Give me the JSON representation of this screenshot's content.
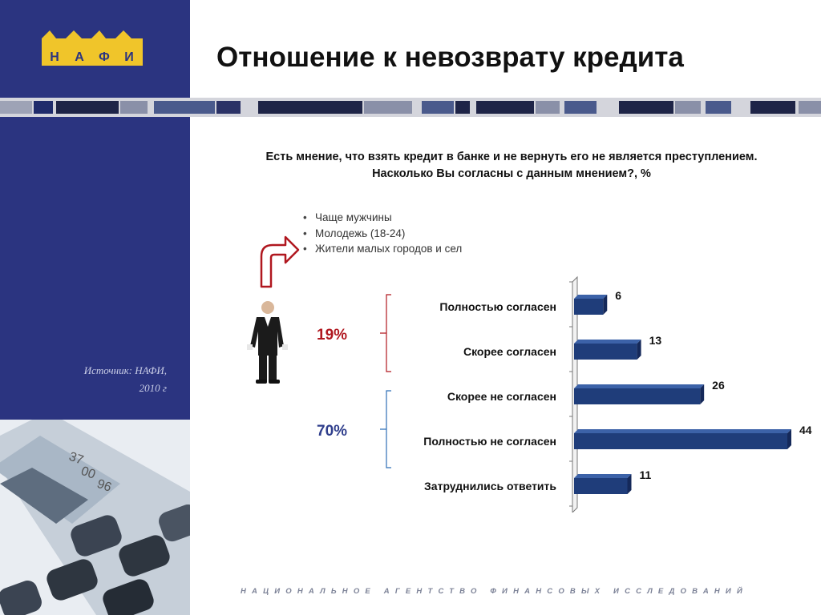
{
  "brand": {
    "logo_text": "НАФИ",
    "logo_letters": [
      "Н",
      "А",
      "Ф",
      "И"
    ]
  },
  "header": {
    "title": "Отношение к невозврату кредита"
  },
  "sidebar": {
    "source_line1": "Источник: НАФИ,",
    "source_line2": "2010 г"
  },
  "question": {
    "line1": "Есть мнение, что взять кредит в банке и не вернуть его не является преступлением.",
    "line2": "Насколько Вы согласны с данным мнением?, %"
  },
  "notes": [
    "Чаще мужчины",
    "Молодежь (18-24)",
    "Жители малых городов и сел"
  ],
  "groups": {
    "agree_pct": "19%",
    "disagree_pct": "70%"
  },
  "footer": {
    "text": "НАЦИОНАЛЬНОЕ АГЕНТСТВО ФИНАНСОВЫХ ИССЛЕДОВАНИЙ"
  },
  "colors": {
    "bar": "#1f3d7a",
    "bar_top": "#3c62a8",
    "sidebar": "#2b3480",
    "agree_bracket": "#b0171f",
    "disagree_bracket": "#2f6fb6"
  },
  "chart_data": {
    "type": "bar",
    "orientation": "horizontal",
    "categories": [
      "Полностью согласен",
      "Скорее согласен",
      "Скорее не согласен",
      "Полностью не согласен",
      "Затруднились ответить"
    ],
    "values": [
      6,
      13,
      26,
      44,
      11
    ],
    "data_labels": [
      "6",
      "13",
      "26",
      "44",
      "11"
    ],
    "xlim": [
      0,
      44
    ],
    "grid": false,
    "legend": "none"
  }
}
